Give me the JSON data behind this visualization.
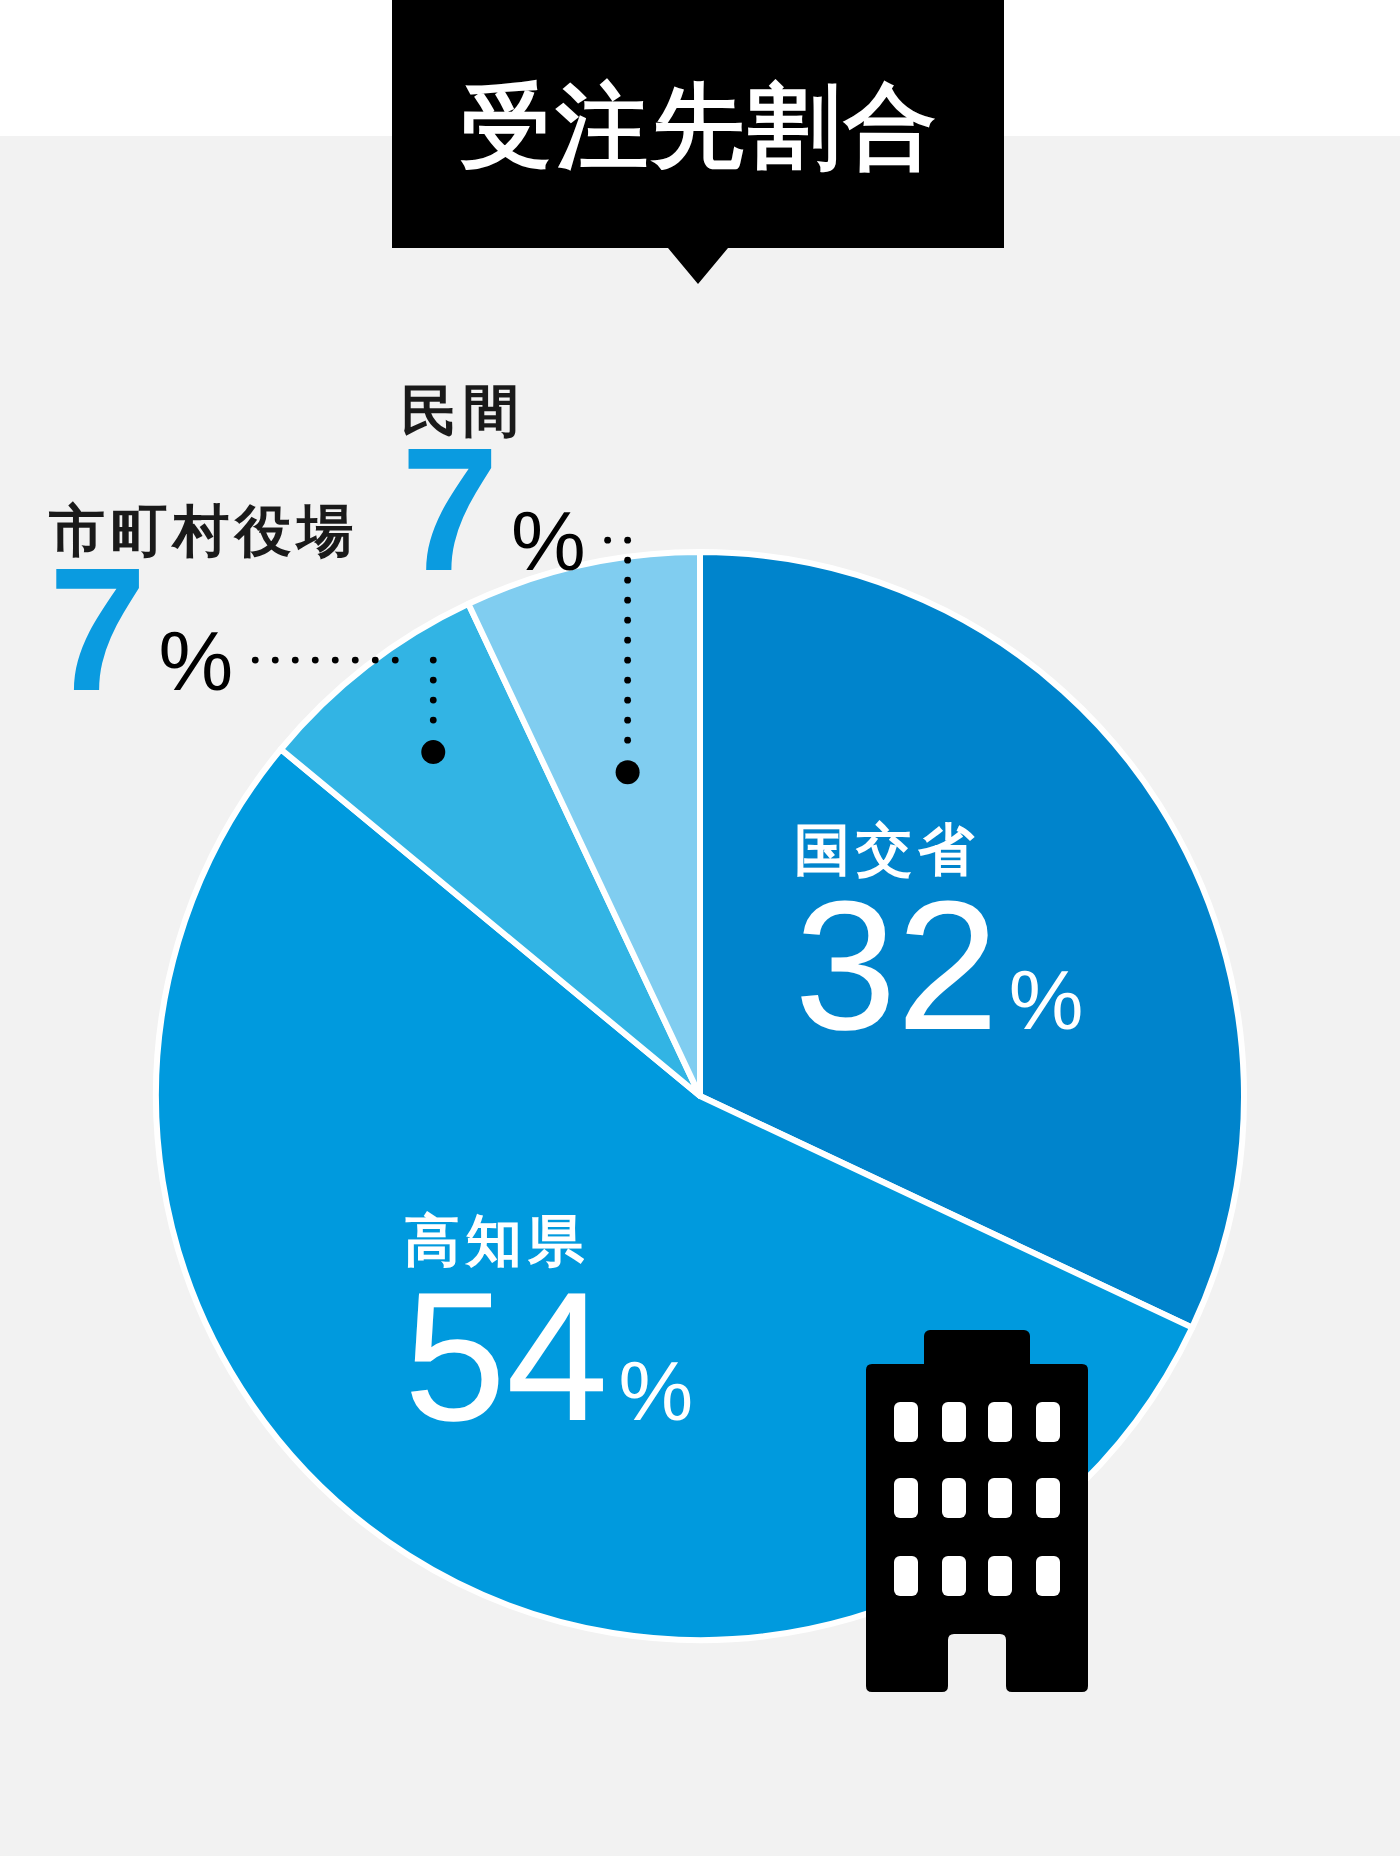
{
  "chart_data": {
    "type": "pie",
    "title": "受注先割合",
    "categories": [
      "国交省",
      "高知県",
      "市町村役場",
      "民間"
    ],
    "values": [
      32,
      54,
      7,
      7
    ],
    "colors": [
      "#0084cc",
      "#009ade",
      "#32b4e4",
      "#80cdf0"
    ],
    "value_labels": [
      "32%",
      "54%",
      "7%",
      "7%"
    ]
  }
}
